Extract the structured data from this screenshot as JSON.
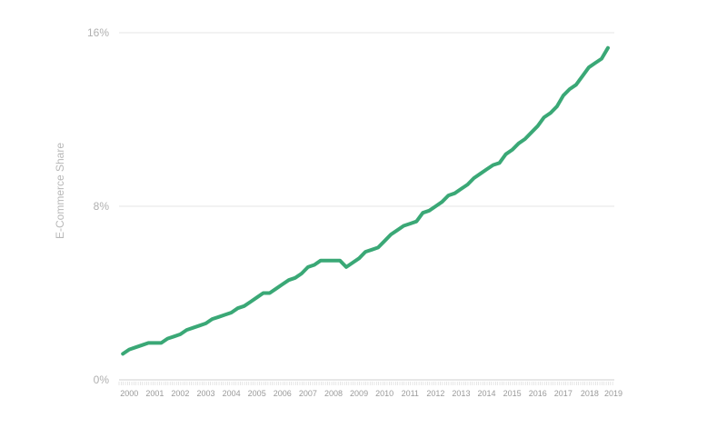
{
  "chart_data": {
    "type": "line",
    "title": "",
    "xlabel": "",
    "ylabel": "E-Commerce Share",
    "y_ticks": [
      "0%",
      "8%",
      "16%"
    ],
    "y_tick_values": [
      0,
      8,
      16
    ],
    "ylim": [
      0,
      16
    ],
    "x_tick_labels": [
      "2000",
      "2001",
      "2002",
      "2003",
      "2004",
      "2005",
      "2006",
      "2007",
      "2008",
      "2009",
      "2010",
      "2011",
      "2012",
      "2013",
      "2014",
      "2015",
      "2016",
      "2017",
      "2018",
      "2019"
    ],
    "grid": true,
    "legend": "none",
    "series": [
      {
        "color": "#3aa876",
        "x": [
          1999.75,
          2000.0,
          2000.25,
          2000.5,
          2000.75,
          2001.0,
          2001.25,
          2001.5,
          2001.75,
          2002.0,
          2002.25,
          2002.5,
          2002.75,
          2003.0,
          2003.25,
          2003.5,
          2003.75,
          2004.0,
          2004.25,
          2004.5,
          2004.75,
          2005.0,
          2005.25,
          2005.5,
          2005.75,
          2006.0,
          2006.25,
          2006.5,
          2006.75,
          2007.0,
          2007.25,
          2007.5,
          2007.75,
          2008.0,
          2008.25,
          2008.5,
          2008.75,
          2009.0,
          2009.25,
          2009.5,
          2009.75,
          2010.0,
          2010.25,
          2010.5,
          2010.75,
          2011.0,
          2011.25,
          2011.5,
          2011.75,
          2012.0,
          2012.25,
          2012.5,
          2012.75,
          2013.0,
          2013.25,
          2013.5,
          2013.75,
          2014.0,
          2014.25,
          2014.5,
          2014.75,
          2015.0,
          2015.25,
          2015.5,
          2015.75,
          2016.0,
          2016.25,
          2016.5,
          2016.75,
          2017.0,
          2017.25,
          2017.5,
          2017.75,
          2018.0,
          2018.25,
          2018.5,
          2018.75
        ],
        "values": [
          1.2,
          1.4,
          1.5,
          1.6,
          1.7,
          1.7,
          1.7,
          1.9,
          2.0,
          2.1,
          2.3,
          2.4,
          2.5,
          2.6,
          2.8,
          2.9,
          3.0,
          3.1,
          3.3,
          3.4,
          3.6,
          3.8,
          4.0,
          4.0,
          4.2,
          4.4,
          4.6,
          4.7,
          4.9,
          5.2,
          5.3,
          5.5,
          5.5,
          5.5,
          5.5,
          5.2,
          5.4,
          5.6,
          5.9,
          6.0,
          6.1,
          6.4,
          6.7,
          6.9,
          7.1,
          7.2,
          7.3,
          7.7,
          7.8,
          8.0,
          8.2,
          8.5,
          8.6,
          8.8,
          9.0,
          9.3,
          9.5,
          9.7,
          9.9,
          10.0,
          10.4,
          10.6,
          10.9,
          11.1,
          11.4,
          11.7,
          12.1,
          12.3,
          12.6,
          13.1,
          13.4,
          13.6,
          14.0,
          14.4,
          14.6,
          14.8,
          15.3
        ]
      }
    ]
  }
}
